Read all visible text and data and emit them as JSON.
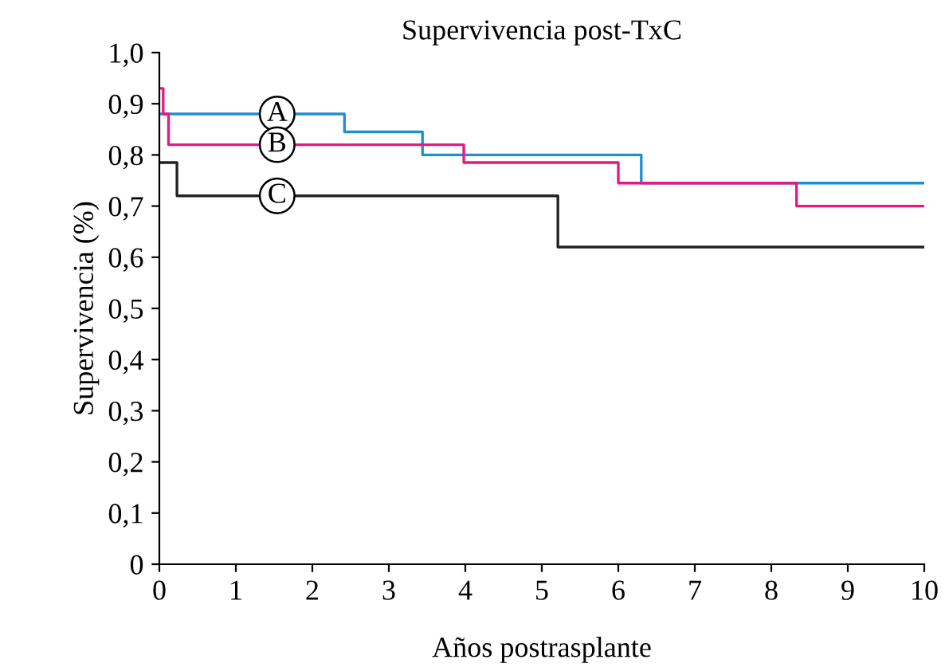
{
  "chart_data": {
    "type": "step",
    "title": "Supervivencia post-TxC",
    "xlabel": "Años postrasplante",
    "ylabel": "Supervivencia (%)",
    "xlim": [
      0,
      10
    ],
    "xticks": [
      0,
      1,
      2,
      3,
      4,
      5,
      6,
      7,
      8,
      9,
      10
    ],
    "ylim": [
      0,
      1.0
    ],
    "yticks": [
      {
        "value": 0,
        "label": "0"
      },
      {
        "value": 0.1,
        "label": "0,1"
      },
      {
        "value": 0.2,
        "label": "0,2"
      },
      {
        "value": 0.3,
        "label": "0,3"
      },
      {
        "value": 0.4,
        "label": "0,4"
      },
      {
        "value": 0.5,
        "label": "0,5"
      },
      {
        "value": 0.6,
        "label": "0,6"
      },
      {
        "value": 0.7,
        "label": "0,7"
      },
      {
        "value": 0.8,
        "label": "0,8"
      },
      {
        "value": 0.9,
        "label": "0,9"
      },
      {
        "value": 1.0,
        "label": "1,0"
      }
    ],
    "grid": false,
    "legend": false,
    "series": [
      {
        "name": "A",
        "color": "#1f8fd0",
        "x": [
          0,
          2.42,
          3.44,
          6.3,
          10
        ],
        "values": [
          0.88,
          0.845,
          0.8,
          0.745,
          0.745
        ]
      },
      {
        "name": "B",
        "color": "#e5197f",
        "x": [
          0,
          0.05,
          0.12,
          3.98,
          6.0,
          8.33,
          10
        ],
        "values": [
          0.93,
          0.88,
          0.82,
          0.785,
          0.745,
          0.7,
          0.7
        ]
      },
      {
        "name": "C",
        "color": "#222222",
        "x": [
          0,
          0.23,
          5.21,
          10
        ],
        "values": [
          0.785,
          0.72,
          0.62,
          0.62
        ]
      }
    ]
  }
}
